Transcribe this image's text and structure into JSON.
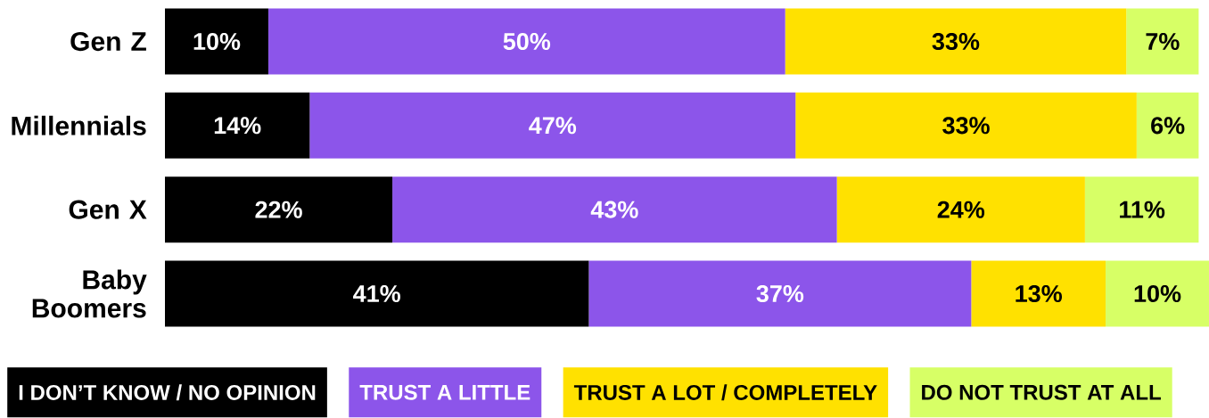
{
  "chart_data": {
    "type": "bar",
    "orientation": "horizontal",
    "stacked": true,
    "categories": [
      "Gen Z",
      "Millennials",
      "Gen X",
      "Baby Boomers"
    ],
    "series": [
      {
        "name": "I DON’T KNOW / NO OPINION",
        "color": "#000000",
        "values": [
          10,
          14,
          22,
          41
        ],
        "value_labels": [
          "10%",
          "14%",
          "22%",
          "41%"
        ]
      },
      {
        "name": "TRUST A LITTLE",
        "color": "#8c55ea",
        "values": [
          50,
          47,
          43,
          37
        ],
        "value_labels": [
          "50%",
          "47%",
          "43%",
          "37%"
        ]
      },
      {
        "name": "TRUST A LOT / COMPLETELY",
        "color": "#ffe100",
        "values": [
          33,
          33,
          24,
          13
        ],
        "value_labels": [
          "33%",
          "33%",
          "24%",
          "13%"
        ]
      },
      {
        "name": "DO NOT TRUST AT ALL",
        "color": "#d7ff66",
        "values": [
          7,
          6,
          11,
          10
        ],
        "value_labels": [
          "7%",
          "6%",
          "11%",
          "10%"
        ]
      }
    ],
    "legend": "bottom"
  }
}
